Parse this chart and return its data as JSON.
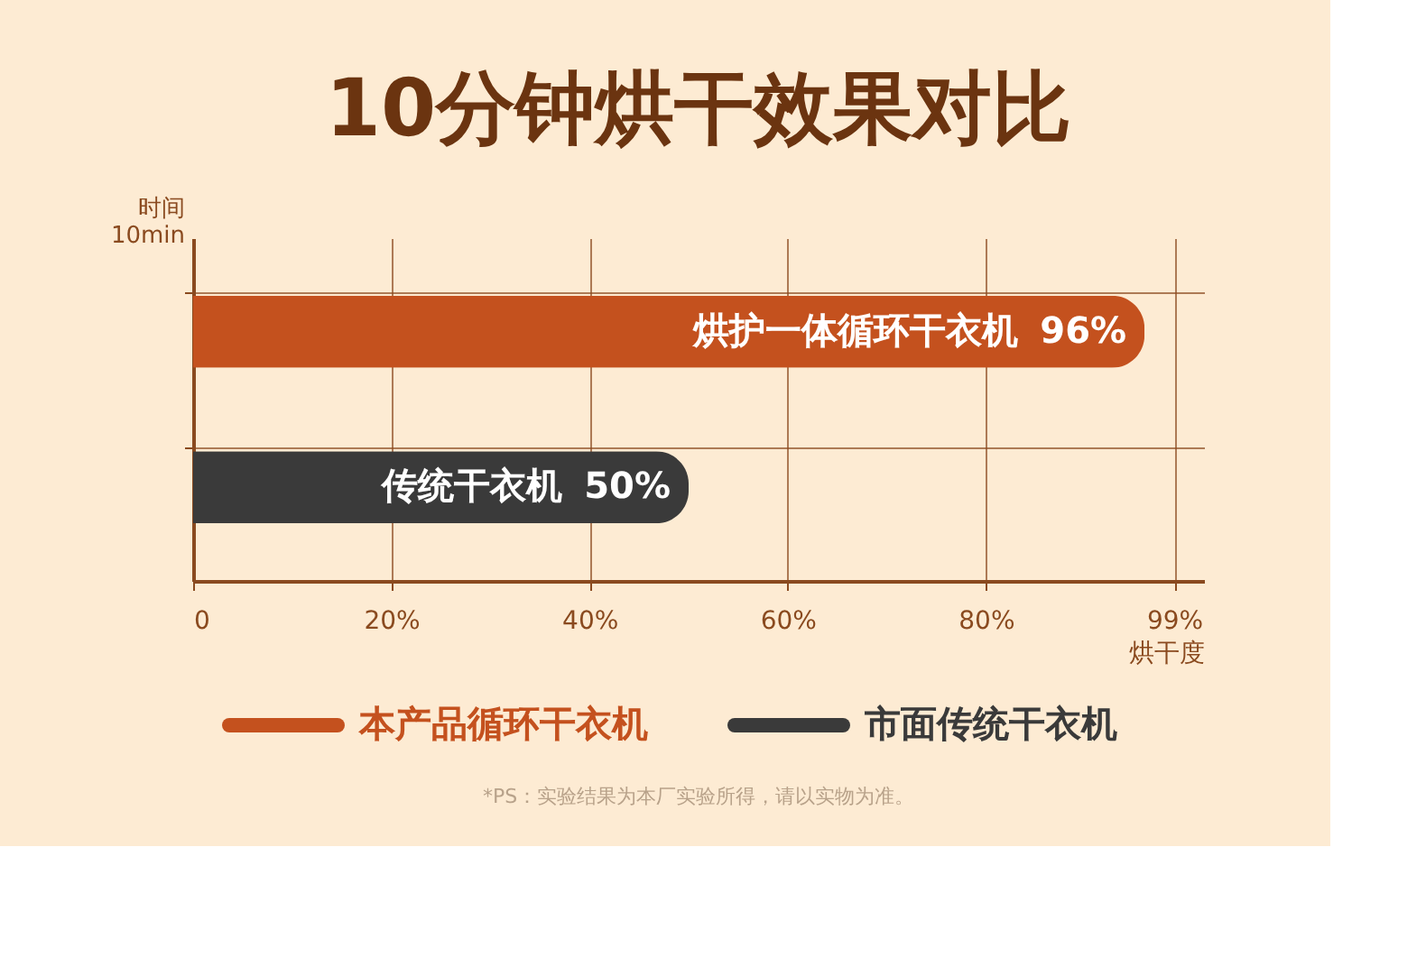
{
  "chart_data": {
    "type": "bar",
    "orientation": "horizontal",
    "title": "10分钟烘干效果对比",
    "ylabel": "时间 10min",
    "xlabel": "烘干度",
    "categories": [
      "烘护一体循环干衣机",
      "传统干衣机"
    ],
    "series": [
      {
        "name": "本产品循环干衣机",
        "color": "#c4511e",
        "values": [
          96,
          null
        ],
        "value_labels": [
          "96%",
          null
        ]
      },
      {
        "name": "市面传统干衣机",
        "color": "#3a3a3a",
        "values": [
          null,
          50
        ],
        "value_labels": [
          null,
          "50%"
        ]
      }
    ],
    "xlim": [
      0,
      102
    ],
    "xticks": [
      0,
      {
        "value": 20,
        "label": "20%"
      },
      {
        "value": 40,
        "label": "40%"
      },
      {
        "value": 60,
        "label": "60%"
      },
      {
        "value": 80,
        "label": "80%"
      },
      {
        "value": 99,
        "label": "99%"
      }
    ],
    "grid": true,
    "legend": "bottom",
    "annotations": [
      "*PS：实验结果为本厂实验所得，请以实物为准。"
    ]
  }
}
